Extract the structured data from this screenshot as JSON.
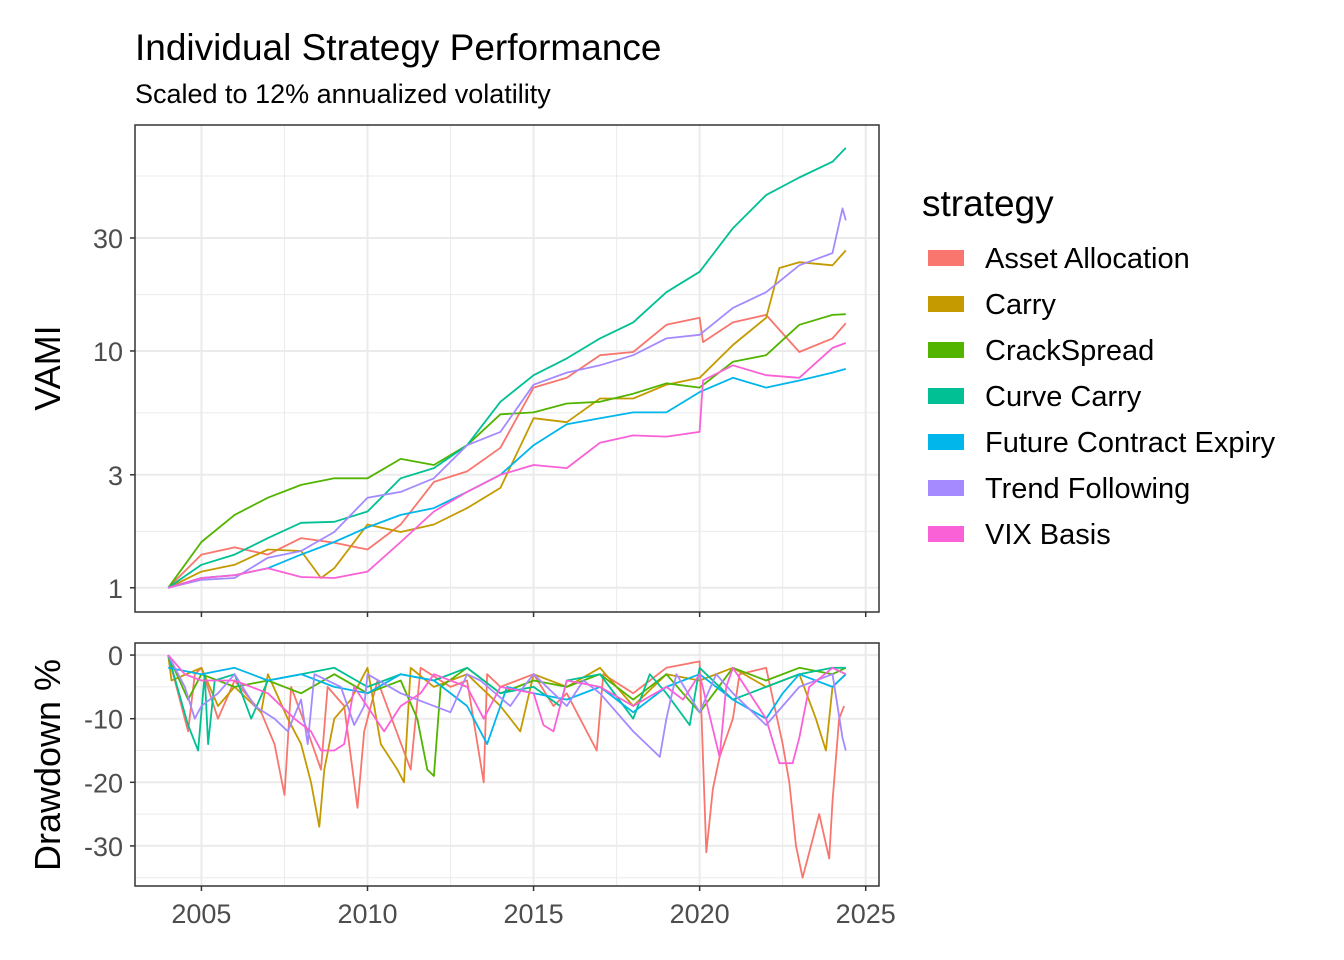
{
  "chart_data": [
    {
      "type": "line",
      "title": "Individual Strategy Performance",
      "subtitle": "Scaled to 12% annualized volatility",
      "xlabel": "",
      "ylabel": "VAMI",
      "y_scale": "log",
      "xlim": [
        2003.0,
        2025.4
      ],
      "ylim": [
        0.79,
        90
      ],
      "grid": true,
      "y_ticks": [
        1,
        3,
        10,
        30
      ],
      "y_tick_labels": [
        "1",
        "3",
        "10",
        "30"
      ],
      "y_minor_ticks": [
        1.73,
        5.48,
        17.3,
        54.8
      ],
      "x_ticks": [
        2005,
        2010,
        2015,
        2020,
        2025
      ],
      "x_minor_ticks": [
        2007.5,
        2012.5,
        2017.5,
        2022.5
      ],
      "x_tick_labels_shown": false,
      "series": [
        {
          "name": "Asset Allocation",
          "x": [
            2004,
            2005,
            2006,
            2007,
            2008,
            2009,
            2010,
            2011,
            2012,
            2013,
            2014,
            2015,
            2016,
            2017,
            2018,
            2019,
            2020,
            2020.1,
            2021,
            2022,
            2023,
            2024,
            2024.4
          ],
          "values": [
            1,
            1.38,
            1.48,
            1.38,
            1.62,
            1.55,
            1.45,
            1.85,
            2.8,
            3.1,
            3.9,
            7.0,
            7.7,
            9.6,
            9.9,
            12.9,
            13.8,
            10.9,
            13.2,
            14.2,
            9.9,
            11.3,
            13.1
          ]
        },
        {
          "name": "Carry",
          "x": [
            2004,
            2005,
            2006,
            2007,
            2008,
            2008.6,
            2009,
            2010,
            2011,
            2012,
            2013,
            2014,
            2015,
            2016,
            2017,
            2018,
            2019,
            2020,
            2021,
            2022,
            2022.4,
            2023,
            2024,
            2024.4
          ],
          "values": [
            1,
            1.17,
            1.25,
            1.45,
            1.43,
            1.1,
            1.21,
            1.85,
            1.72,
            1.85,
            2.17,
            2.64,
            5.2,
            5.0,
            6.3,
            6.3,
            7.2,
            7.7,
            10.6,
            13.8,
            22.4,
            23.7,
            23,
            26.6
          ]
        },
        {
          "name": "CrackSpread",
          "x": [
            2004,
            2005,
            2006,
            2007,
            2008,
            2009,
            2010,
            2011,
            2012,
            2013,
            2014,
            2015,
            2016,
            2017,
            2018,
            2019,
            2020,
            2021,
            2022,
            2023,
            2024,
            2024.4
          ],
          "values": [
            1,
            1.56,
            2.03,
            2.4,
            2.72,
            2.9,
            2.9,
            3.5,
            3.3,
            4.0,
            5.4,
            5.5,
            6.0,
            6.1,
            6.6,
            7.3,
            7.0,
            9.0,
            9.6,
            12.9,
            14.2,
            14.3
          ]
        },
        {
          "name": "Curve Carry",
          "x": [
            2004,
            2005,
            2006,
            2007,
            2008,
            2009,
            2010,
            2011,
            2012,
            2013,
            2014,
            2015,
            2016,
            2017,
            2018,
            2019,
            2020,
            2021,
            2022,
            2023,
            2024,
            2024.4
          ],
          "values": [
            1,
            1.25,
            1.38,
            1.62,
            1.88,
            1.9,
            2.1,
            2.9,
            3.2,
            4.0,
            6.1,
            7.9,
            9.3,
            11.3,
            13.2,
            17.7,
            21.6,
            33,
            45.5,
            54,
            63,
            72
          ]
        },
        {
          "name": "Future Contract Expiry",
          "x": [
            2004,
            2005,
            2006,
            2007,
            2008,
            2009,
            2010,
            2011,
            2012,
            2013,
            2014,
            2015,
            2016,
            2017,
            2018,
            2019,
            2020,
            2021,
            2022,
            2023,
            2024,
            2024.4
          ],
          "values": [
            1,
            1.1,
            1.13,
            1.21,
            1.38,
            1.56,
            1.8,
            2.03,
            2.17,
            2.54,
            3.0,
            4.0,
            4.9,
            5.2,
            5.5,
            5.5,
            6.7,
            7.7,
            7.0,
            7.5,
            8.1,
            8.4
          ]
        },
        {
          "name": "Trend Following",
          "x": [
            2004,
            2005,
            2006,
            2007,
            2008,
            2009,
            2010,
            2011,
            2012,
            2013,
            2014,
            2015,
            2016,
            2017,
            2018,
            2019,
            2020,
            2021,
            2022,
            2023,
            2024,
            2024.3,
            2024.4
          ],
          "values": [
            1,
            1.08,
            1.1,
            1.34,
            1.43,
            1.72,
            2.4,
            2.54,
            2.9,
            4.0,
            4.55,
            7.2,
            8.1,
            8.7,
            9.6,
            11.3,
            11.7,
            15.2,
            17.7,
            23,
            25.9,
            40,
            35.6
          ]
        },
        {
          "name": "VIX Basis",
          "x": [
            2004,
            2005,
            2006,
            2007,
            2008,
            2009,
            2010,
            2011,
            2012,
            2013,
            2014,
            2015,
            2016,
            2017,
            2018,
            2019,
            2020,
            2020.1,
            2021,
            2022,
            2023,
            2024,
            2024.4
          ],
          "values": [
            1,
            1.1,
            1.13,
            1.21,
            1.11,
            1.1,
            1.17,
            1.56,
            2.1,
            2.54,
            3.0,
            3.3,
            3.2,
            4.1,
            4.4,
            4.35,
            4.55,
            7.5,
            8.7,
            7.9,
            7.7,
            10.3,
            10.8
          ]
        }
      ]
    },
    {
      "type": "line",
      "xlabel": "",
      "ylabel": "Drawdown %",
      "xlim": [
        2003.0,
        2025.4
      ],
      "ylim": [
        -36.3,
        1.9
      ],
      "grid": true,
      "y_ticks": [
        0,
        -10,
        -20,
        -30
      ],
      "y_tick_labels": [
        "0",
        "-10",
        "-20",
        "-30"
      ],
      "y_minor_ticks": [
        -5,
        -15,
        -25,
        -35
      ],
      "x_ticks": [
        2005,
        2010,
        2015,
        2020,
        2025
      ],
      "x_tick_labels": [
        "2005",
        "2010",
        "2015",
        "2020",
        "2025"
      ],
      "x_minor_ticks": [
        2007.5,
        2012.5,
        2017.5,
        2022.5
      ],
      "series": [
        {
          "name": "Asset Allocation",
          "x": [
            2004,
            2004.6,
            2004.8,
            2005,
            2005.5,
            2006,
            2006.8,
            2007.2,
            2007.5,
            2007.7,
            2008.2,
            2008.6,
            2008.8,
            2009.3,
            2009.7,
            2009.9,
            2010.3,
            2011.3,
            2011.6,
            2012.5,
            2013,
            2013.5,
            2013.6,
            2014,
            2015,
            2015.6,
            2016,
            2016.9,
            2017.1,
            2018,
            2019,
            2020,
            2020.2,
            2020.4,
            2020.6,
            2021,
            2021.2,
            2022,
            2022.5,
            2022.7,
            2022.9,
            2023.1,
            2023.4,
            2023.6,
            2023.9,
            2024,
            2024.2,
            2024.35
          ],
          "values": [
            0,
            -12,
            -3,
            -2,
            -10,
            -4,
            -9,
            -14,
            -22,
            -5,
            -12,
            -18,
            -5,
            -8,
            -24,
            -12,
            -4,
            -18,
            -2,
            -5,
            -4,
            -20,
            -3,
            -5,
            -3,
            -8,
            -6,
            -15,
            -3,
            -6,
            -2,
            -1,
            -31,
            -21,
            -16,
            -10,
            -3,
            -2,
            -14,
            -20,
            -30,
            -35,
            -29,
            -25,
            -32,
            -23,
            -10,
            -8
          ]
        },
        {
          "name": "Carry",
          "x": [
            2004,
            2004.1,
            2005,
            2005.5,
            2006,
            2006.8,
            2007,
            2007.6,
            2008,
            2008.3,
            2008.55,
            2008.7,
            2009,
            2009.5,
            2010,
            2010.4,
            2010.9,
            2011.1,
            2011.3,
            2012,
            2013,
            2014,
            2014.6,
            2015,
            2016,
            2017,
            2018,
            2019,
            2020,
            2021,
            2022,
            2023,
            2023.5,
            2023.8,
            2024,
            2024.4
          ],
          "values": [
            0,
            -4,
            -2,
            -8,
            -5,
            -9,
            -3,
            -10,
            -14,
            -20,
            -27,
            -18,
            -10,
            -7,
            -2,
            -14,
            -18,
            -20,
            -2,
            -5,
            -3,
            -8,
            -12,
            -3,
            -5,
            -2,
            -8,
            -3,
            -4,
            -2,
            -5,
            -3,
            -10,
            -15,
            -5,
            -3
          ]
        },
        {
          "name": "CrackSpread",
          "x": [
            2004,
            2004.6,
            2005,
            2006,
            2007,
            2008,
            2009,
            2010,
            2011,
            2011.5,
            2011.8,
            2012,
            2012.2,
            2013,
            2014,
            2015,
            2016,
            2017,
            2018,
            2019,
            2020,
            2021,
            2022,
            2023,
            2024,
            2024.4
          ],
          "values": [
            0,
            -7,
            -3,
            -5,
            -4,
            -6,
            -3,
            -6,
            -4,
            -10,
            -18,
            -19,
            -5,
            -2,
            -6,
            -4,
            -5,
            -3,
            -7,
            -3,
            -9,
            -2,
            -4,
            -2,
            -3,
            -2
          ]
        },
        {
          "name": "Curve Carry",
          "x": [
            2004,
            2004.6,
            2004.9,
            2005.1,
            2005.2,
            2005.4,
            2006,
            2006.5,
            2007,
            2008,
            2009,
            2010,
            2011,
            2012,
            2013,
            2014,
            2015,
            2015.8,
            2016,
            2017,
            2018,
            2018.5,
            2019,
            2019.7,
            2020,
            2021,
            2022,
            2023,
            2024,
            2024.4
          ],
          "values": [
            0,
            -11,
            -15,
            -3,
            -14,
            -4,
            -3,
            -10,
            -4,
            -3,
            -2,
            -5,
            -3,
            -4,
            -2,
            -6,
            -5,
            -8,
            -4,
            -3,
            -10,
            -3,
            -6,
            -11,
            -2,
            -7,
            -5,
            -3,
            -2,
            -2
          ]
        },
        {
          "name": "Future Contract Expiry",
          "x": [
            2004,
            2005,
            2006,
            2007,
            2008,
            2009,
            2010,
            2011,
            2012,
            2013,
            2013.6,
            2014,
            2014.2,
            2015,
            2016,
            2017,
            2018,
            2019,
            2020,
            2021,
            2022,
            2022.5,
            2023,
            2024,
            2024.4
          ],
          "values": [
            -2,
            -3,
            -2,
            -4,
            -3,
            -5,
            -6,
            -3,
            -4,
            -8,
            -14,
            -8,
            -5,
            -6,
            -7,
            -5,
            -9,
            -5,
            -3,
            -7,
            -10,
            -6,
            -3,
            -5,
            -3
          ]
        },
        {
          "name": "Trend Following",
          "x": [
            2004,
            2004.5,
            2004.8,
            2005,
            2005.5,
            2006,
            2006.6,
            2007.2,
            2007.6,
            2008,
            2008.2,
            2008.4,
            2009.2,
            2009.6,
            2009.9,
            2010,
            2011,
            2012.5,
            2013,
            2013.4,
            2014.3,
            2014.7,
            2015,
            2016,
            2016.5,
            2017,
            2018,
            2018.4,
            2018.8,
            2019,
            2019.3,
            2020,
            2020.5,
            2021,
            2022,
            2023,
            2024,
            2024.3,
            2024.4
          ],
          "values": [
            0,
            -5,
            -10,
            -8,
            -6,
            -3,
            -8,
            -10,
            -12,
            -7,
            -14,
            -3,
            -5,
            -11,
            -8,
            -3,
            -6,
            -9,
            -3,
            -4,
            -8,
            -5,
            -3,
            -8,
            -4,
            -6,
            -12,
            -14,
            -16,
            -10,
            -3,
            -9,
            -3,
            -6,
            -11,
            -5,
            -3,
            -13,
            -15
          ]
        },
        {
          "name": "VIX Basis",
          "x": [
            2004,
            2004.5,
            2005,
            2006,
            2007,
            2007.8,
            2008.3,
            2008.6,
            2009,
            2009.3,
            2009.6,
            2010.5,
            2011,
            2011.6,
            2012,
            2013,
            2013.5,
            2014,
            2015,
            2015.3,
            2015.6,
            2016,
            2017,
            2018,
            2019,
            2019.5,
            2020,
            2020.6,
            2020.8,
            2021,
            2022,
            2022.4,
            2022.8,
            2023,
            2023.3,
            2024,
            2024.4
          ],
          "values": [
            0,
            -3,
            -4,
            -4,
            -6,
            -10,
            -12,
            -15,
            -15,
            -14,
            -5,
            -12,
            -8,
            -6,
            -3,
            -5,
            -10,
            -5,
            -6,
            -11,
            -12,
            -4,
            -5,
            -8,
            -5,
            -7,
            -3,
            -16,
            -5,
            -2,
            -10,
            -17,
            -17,
            -13,
            -5,
            -2,
            -3
          ]
        }
      ]
    }
  ],
  "legend": {
    "title": "strategy",
    "placement": "right",
    "items": [
      {
        "label": "Asset Allocation",
        "color": "#F8766D"
      },
      {
        "label": "Carry",
        "color": "#C49A00"
      },
      {
        "label": "CrackSpread",
        "color": "#53B400"
      },
      {
        "label": "Curve Carry",
        "color": "#00C094"
      },
      {
        "label": "Future Contract Expiry",
        "color": "#00B6EB"
      },
      {
        "label": "Trend Following",
        "color": "#A58AFF"
      },
      {
        "label": "VIX Basis",
        "color": "#FB61D7"
      }
    ]
  }
}
